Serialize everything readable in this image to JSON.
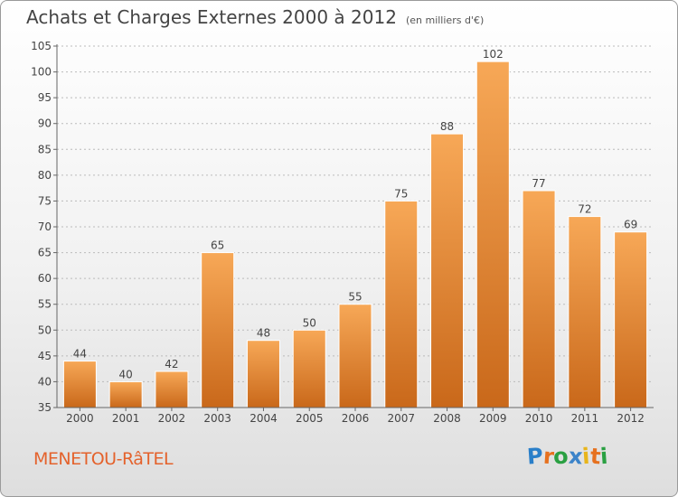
{
  "title": "Achats et Charges Externes 2000 à 2012",
  "subtitle": "(en milliers d'€)",
  "commune": "MENETOU-RâTEL",
  "brand": {
    "letters": [
      "P",
      "r",
      "o",
      "x",
      "i",
      "t",
      "i"
    ],
    "colors": [
      "#2a7fc9",
      "#e6711f",
      "#2aa042",
      "#3b83c9",
      "#e8b51b",
      "#e6711f",
      "#2aa042"
    ]
  },
  "colors": {
    "bar_top": "#f7a857",
    "bar_bottom": "#c9681a",
    "accent": "#e4622c"
  },
  "chart_data": {
    "type": "bar",
    "categories": [
      "2000",
      "2001",
      "2002",
      "2003",
      "2004",
      "2005",
      "2006",
      "2007",
      "2008",
      "2009",
      "2010",
      "2011",
      "2012"
    ],
    "values": [
      44,
      40,
      42,
      65,
      48,
      50,
      55,
      75,
      88,
      102,
      77,
      72,
      69
    ],
    "value_labels": [
      "44",
      "40",
      "42",
      "65",
      "48",
      "50",
      "55",
      "75",
      "88",
      "102",
      "77",
      "72",
      "69"
    ],
    "ylim": [
      35,
      105
    ],
    "yticks": [
      "35",
      "40",
      "45",
      "50",
      "55",
      "60",
      "65",
      "70",
      "75",
      "80",
      "85",
      "90",
      "95",
      "100",
      "105"
    ],
    "grid": true,
    "xlabel": "",
    "ylabel": ""
  }
}
